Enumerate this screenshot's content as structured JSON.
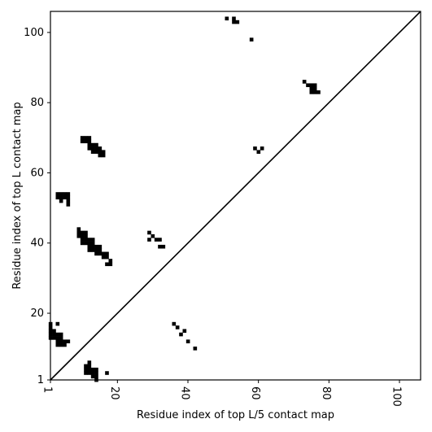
{
  "chart_data": {
    "type": "scatter",
    "xlabel": "Residue index of top L/5 contact map",
    "ylabel": "Residue index of top L contact map",
    "xlim": [
      1,
      106
    ],
    "ylim": [
      1,
      106
    ],
    "x_ticks": [
      1,
      20,
      40,
      60,
      80,
      100
    ],
    "y_ticks": [
      1,
      20,
      40,
      60,
      80,
      100
    ],
    "x_tick_labels": [
      "1",
      "20",
      "40",
      "60",
      "80",
      "100"
    ],
    "y_tick_labels": [
      "1",
      "20",
      "40",
      "60",
      "80",
      "100"
    ],
    "grid": false,
    "diagonal_line": true,
    "top_L_contacts": [
      [
        51,
        104
      ],
      [
        53,
        104
      ],
      [
        53,
        103
      ],
      [
        54,
        103
      ],
      [
        58,
        98
      ],
      [
        73,
        86
      ],
      [
        74,
        85
      ],
      [
        75,
        85
      ],
      [
        76,
        85
      ],
      [
        75,
        84
      ],
      [
        76,
        84
      ],
      [
        75,
        83
      ],
      [
        76,
        83
      ],
      [
        77,
        83
      ],
      [
        59,
        67
      ],
      [
        61,
        67
      ],
      [
        60,
        66
      ],
      [
        10,
        70
      ],
      [
        11,
        70
      ],
      [
        12,
        70
      ],
      [
        10,
        69
      ],
      [
        11,
        69
      ],
      [
        12,
        69
      ],
      [
        12,
        68
      ],
      [
        13,
        68
      ],
      [
        14,
        68
      ],
      [
        12,
        67
      ],
      [
        13,
        67
      ],
      [
        14,
        67
      ],
      [
        15,
        67
      ],
      [
        13,
        66
      ],
      [
        14,
        66
      ],
      [
        15,
        66
      ],
      [
        16,
        66
      ],
      [
        15,
        65
      ],
      [
        16,
        65
      ],
      [
        3,
        54
      ],
      [
        4,
        54
      ],
      [
        5,
        54
      ],
      [
        6,
        54
      ],
      [
        3,
        53
      ],
      [
        4,
        53
      ],
      [
        5,
        53
      ],
      [
        6,
        53
      ],
      [
        4,
        52
      ],
      [
        6,
        52
      ],
      [
        6,
        51
      ],
      [
        9,
        44
      ],
      [
        9,
        43
      ],
      [
        10,
        43
      ],
      [
        11,
        43
      ],
      [
        9,
        42
      ],
      [
        10,
        42
      ],
      [
        11,
        42
      ],
      [
        10,
        41
      ],
      [
        11,
        41
      ],
      [
        12,
        41
      ],
      [
        13,
        41
      ],
      [
        10,
        40
      ],
      [
        11,
        40
      ],
      [
        12,
        40
      ],
      [
        13,
        40
      ],
      [
        12,
        39
      ],
      [
        13,
        39
      ],
      [
        14,
        39
      ],
      [
        15,
        39
      ],
      [
        12,
        38
      ],
      [
        13,
        38
      ],
      [
        14,
        38
      ],
      [
        15,
        38
      ],
      [
        14,
        37
      ],
      [
        15,
        37
      ],
      [
        16,
        37
      ],
      [
        17,
        37
      ],
      [
        16,
        36
      ],
      [
        17,
        36
      ],
      [
        18,
        35
      ],
      [
        17,
        34
      ],
      [
        18,
        34
      ],
      [
        29,
        43
      ],
      [
        30,
        42
      ],
      [
        31,
        41
      ],
      [
        32,
        41
      ],
      [
        29,
        41
      ],
      [
        32,
        39
      ],
      [
        33,
        39
      ],
      [
        1,
        17
      ],
      [
        1,
        16
      ],
      [
        1,
        15
      ],
      [
        2,
        15
      ],
      [
        1,
        14
      ],
      [
        2,
        14
      ],
      [
        3,
        14
      ],
      [
        4,
        14
      ],
      [
        1,
        13
      ],
      [
        2,
        13
      ],
      [
        3,
        13
      ],
      [
        4,
        13
      ],
      [
        3,
        12
      ],
      [
        4,
        12
      ],
      [
        5,
        12
      ],
      [
        6,
        12
      ],
      [
        3,
        11
      ],
      [
        4,
        11
      ],
      [
        5,
        11
      ],
      [
        3,
        17
      ]
    ],
    "top_L5_contacts": [
      [
        36,
        17
      ],
      [
        37,
        16
      ],
      [
        39,
        15
      ],
      [
        38,
        14
      ],
      [
        40,
        12
      ],
      [
        42,
        10
      ],
      [
        12,
        6
      ],
      [
        11,
        5
      ],
      [
        12,
        5
      ],
      [
        11,
        4
      ],
      [
        12,
        4
      ],
      [
        13,
        4
      ],
      [
        14,
        4
      ],
      [
        11,
        3
      ],
      [
        12,
        3
      ],
      [
        13,
        3
      ],
      [
        14,
        3
      ],
      [
        13,
        2
      ],
      [
        14,
        2
      ],
      [
        14,
        1
      ],
      [
        17,
        3
      ]
    ]
  }
}
